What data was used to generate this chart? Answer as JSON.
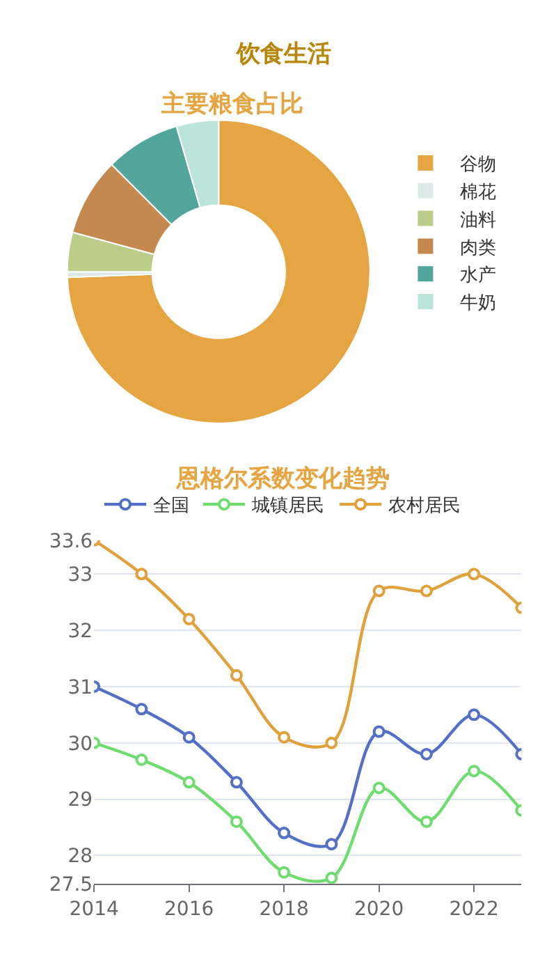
{
  "chart_data": [
    {
      "type": "donut",
      "title": "主要粮食占比",
      "annotations": [
        "饮食生活"
      ],
      "legend": "right",
      "categories": [
        "谷物",
        "棉花",
        "油料",
        "肉类",
        "水产",
        "牛奶"
      ],
      "values": [
        74.4,
        0.6,
        4.2,
        8.3,
        8.0,
        4.5
      ],
      "colors": [
        "#e5a542",
        "#dde9e6",
        "#bccd8a",
        "#c4894f",
        "#52a59a",
        "#bde4da"
      ]
    },
    {
      "type": "line",
      "title": "恩格尔系数变化趋势",
      "legend": "top",
      "grid": "y",
      "marker": "circle",
      "line_style": "solid",
      "x": [
        2014,
        2015,
        2016,
        2017,
        2018,
        2019,
        2020,
        2021,
        2022,
        2023
      ],
      "xlim": [
        2014,
        2023
      ],
      "xticks": [
        2014,
        2016,
        2018,
        2020,
        2022
      ],
      "ylim": [
        27.5,
        33.6
      ],
      "yticks": [
        27.5,
        28,
        29,
        30,
        31,
        32,
        33,
        33.6
      ],
      "series": [
        {
          "name": "全国",
          "color": "#5470c6",
          "values": [
            31.0,
            30.6,
            30.1,
            29.3,
            28.4,
            28.2,
            30.2,
            29.8,
            30.5,
            29.8
          ]
        },
        {
          "name": "城镇居民",
          "color": "#6fdc6f",
          "values": [
            30.0,
            29.7,
            29.3,
            28.6,
            27.7,
            27.6,
            29.2,
            28.6,
            29.5,
            28.8
          ]
        },
        {
          "name": "农村居民",
          "color": "#e0a03c",
          "values": [
            33.6,
            33.0,
            32.2,
            31.2,
            30.1,
            30.0,
            32.7,
            32.7,
            33.0,
            32.4
          ]
        }
      ]
    }
  ]
}
